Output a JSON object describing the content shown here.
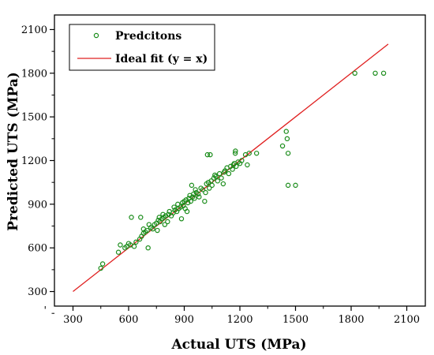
{
  "chart_data": {
    "type": "scatter",
    "title": "",
    "xlabel": "Actual UTS (MPa)",
    "ylabel": "Predicted UTS (MPa)",
    "xlim": [
      200,
      2200
    ],
    "ylim": [
      200,
      2200
    ],
    "xticks": [
      300,
      600,
      900,
      1200,
      1500,
      1800,
      2100
    ],
    "yticks": [
      300,
      600,
      900,
      1200,
      1500,
      1800,
      2100
    ],
    "xtick_labels": [
      "300",
      "600",
      "900",
      "1200",
      "1500",
      "1800",
      "2100"
    ],
    "ytick_labels": [
      "300",
      "600",
      "900",
      "1200",
      "1500",
      "1800",
      "2100"
    ],
    "grid": false,
    "legend_position": "top-left",
    "legend": {
      "predictions_label": "Predcitons",
      "ideal_label": "Ideal fit (y = x)"
    },
    "colors": {
      "points": "#1a8c1a",
      "ideal_line": "#e02020",
      "axes": "#000000"
    },
    "ideal_line": {
      "x": [
        300,
        2000
      ],
      "y": [
        300,
        2000
      ]
    },
    "series": [
      {
        "name": "Predcitons",
        "points": [
          [
            450,
            460
          ],
          [
            460,
            490
          ],
          [
            545,
            570
          ],
          [
            555,
            620
          ],
          [
            580,
            600
          ],
          [
            590,
            610
          ],
          [
            600,
            630
          ],
          [
            610,
            620
          ],
          [
            615,
            810
          ],
          [
            630,
            610
          ],
          [
            640,
            640
          ],
          [
            660,
            660
          ],
          [
            665,
            810
          ],
          [
            670,
            680
          ],
          [
            680,
            700
          ],
          [
            680,
            730
          ],
          [
            690,
            710
          ],
          [
            700,
            720
          ],
          [
            705,
            600
          ],
          [
            710,
            760
          ],
          [
            720,
            740
          ],
          [
            730,
            730
          ],
          [
            740,
            760
          ],
          [
            750,
            770
          ],
          [
            755,
            720
          ],
          [
            760,
            790
          ],
          [
            765,
            810
          ],
          [
            770,
            780
          ],
          [
            780,
            800
          ],
          [
            785,
            830
          ],
          [
            790,
            810
          ],
          [
            795,
            760
          ],
          [
            800,
            820
          ],
          [
            810,
            780
          ],
          [
            815,
            830
          ],
          [
            820,
            850
          ],
          [
            830,
            820
          ],
          [
            840,
            840
          ],
          [
            845,
            880
          ],
          [
            850,
            860
          ],
          [
            860,
            850
          ],
          [
            865,
            900
          ],
          [
            870,
            870
          ],
          [
            880,
            880
          ],
          [
            885,
            800
          ],
          [
            890,
            910
          ],
          [
            895,
            890
          ],
          [
            900,
            920
          ],
          [
            905,
            870
          ],
          [
            910,
            930
          ],
          [
            915,
            850
          ],
          [
            920,
            910
          ],
          [
            925,
            940
          ],
          [
            930,
            960
          ],
          [
            935,
            920
          ],
          [
            940,
            1030
          ],
          [
            945,
            950
          ],
          [
            950,
            970
          ],
          [
            955,
            940
          ],
          [
            960,
            1000
          ],
          [
            965,
            980
          ],
          [
            975,
            970
          ],
          [
            980,
            950
          ],
          [
            990,
            1010
          ],
          [
            1000,
            1000
          ],
          [
            1010,
            920
          ],
          [
            1015,
            980
          ],
          [
            1020,
            1040
          ],
          [
            1025,
            1240
          ],
          [
            1030,
            1050
          ],
          [
            1035,
            1010
          ],
          [
            1040,
            1240
          ],
          [
            1045,
            1060
          ],
          [
            1050,
            1030
          ],
          [
            1060,
            1080
          ],
          [
            1065,
            1100
          ],
          [
            1070,
            1090
          ],
          [
            1080,
            1060
          ],
          [
            1090,
            1110
          ],
          [
            1100,
            1080
          ],
          [
            1110,
            1040
          ],
          [
            1115,
            1120
          ],
          [
            1120,
            1130
          ],
          [
            1130,
            1150
          ],
          [
            1140,
            1110
          ],
          [
            1150,
            1160
          ],
          [
            1160,
            1140
          ],
          [
            1165,
            1170
          ],
          [
            1170,
            1180
          ],
          [
            1175,
            1250
          ],
          [
            1176,
            1265
          ],
          [
            1180,
            1160
          ],
          [
            1190,
            1190
          ],
          [
            1200,
            1180
          ],
          [
            1210,
            1200
          ],
          [
            1230,
            1240
          ],
          [
            1240,
            1170
          ],
          [
            1250,
            1250
          ],
          [
            1290,
            1250
          ],
          [
            1430,
            1300
          ],
          [
            1450,
            1400
          ],
          [
            1455,
            1350
          ],
          [
            1460,
            1250
          ],
          [
            1460,
            1030
          ],
          [
            1500,
            1030
          ],
          [
            1820,
            1800
          ],
          [
            1930,
            1800
          ],
          [
            1975,
            1800
          ]
        ]
      }
    ]
  }
}
